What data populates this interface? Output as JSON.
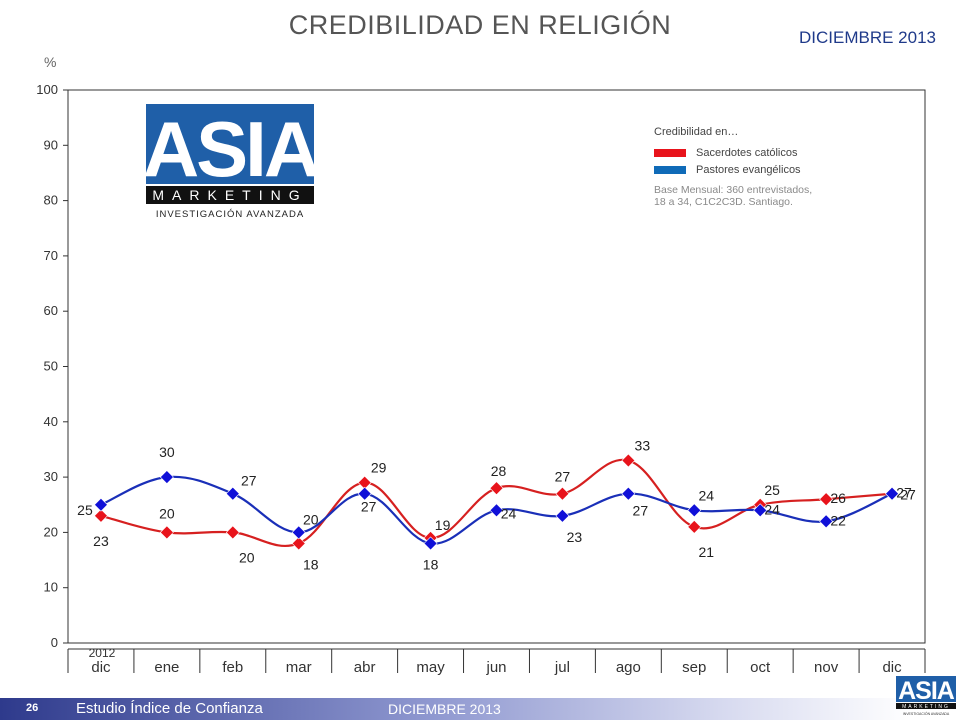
{
  "header": {
    "title": "CREDIBILIDAD EN RELIGIÓN",
    "date": "DICIEMBRE 2013",
    "unit": "%"
  },
  "legend": {
    "title": "Credibilidad en…",
    "items": [
      {
        "label": "Sacerdotes católicos",
        "color": "#e8131b"
      },
      {
        "label": "Pastores evangélicos",
        "color": "#0f6bb8"
      }
    ],
    "base_line1": "Base Mensual: 360 entrevistados,",
    "base_line2": "18 a 34, C1C2C3D. Santiago."
  },
  "logo": {
    "main": "ASIA",
    "sub": "MARKETING",
    "tagline": "INVESTIGACIÓN AVANZADA"
  },
  "footer": {
    "page": "26",
    "study": "Estudio  Índice de Confianza",
    "date": "DICIEMBRE 2013"
  },
  "chart_data": {
    "type": "line",
    "categories": [
      "dic",
      "ene",
      "feb",
      "mar",
      "abr",
      "may",
      "jun",
      "jul",
      "ago",
      "sep",
      "oct",
      "nov",
      "dic"
    ],
    "year_label": "2012",
    "ylim": [
      0,
      100
    ],
    "yticks": [
      0,
      10,
      20,
      30,
      40,
      50,
      60,
      70,
      80,
      90,
      100
    ],
    "series": [
      {
        "name": "Sacerdotes católicos",
        "color": "#e8131b",
        "values": [
          23,
          20,
          20,
          18,
          29,
          19,
          28,
          27,
          33,
          21,
          25,
          26,
          27
        ]
      },
      {
        "name": "Pastores evangélicos",
        "color": "#0f6bb8",
        "marker_color": "#1010d8",
        "values": [
          25,
          30,
          27,
          20,
          27,
          18,
          24,
          23,
          27,
          24,
          24,
          22,
          27
        ]
      }
    ]
  }
}
